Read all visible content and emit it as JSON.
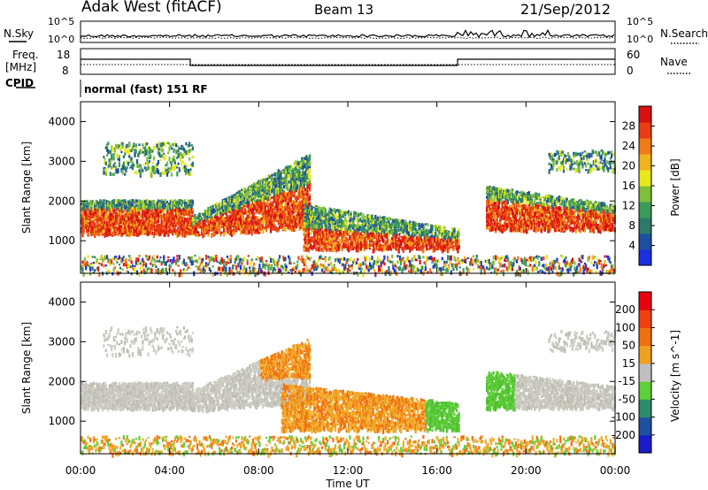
{
  "header": {
    "radar": "Adak West (fitACF)",
    "beam": "Beam 13",
    "date": "21/Sep/2012"
  },
  "panels": {
    "nsky": {
      "left_label": "N.Sky",
      "right_label": "N.Search",
      "ticks_left": [
        "10^5",
        "10^0"
      ],
      "ticks_right": [
        "10^5",
        "10^0"
      ]
    },
    "freq": {
      "left_label": "Freq.",
      "left_unit": "[MHz]",
      "right_label": "Nave",
      "ticks_left": [
        "18",
        "8"
      ],
      "ticks_right": [
        "60",
        "0"
      ]
    },
    "cpid": {
      "label": "CPID",
      "mode_text": "normal (fast) 151 RF"
    }
  },
  "chart_data": [
    {
      "type": "heatmap",
      "title": "",
      "xlabel": "Time UT",
      "ylabel": "Slant Range [km]",
      "x_ticks": [
        "00:00",
        "04:00",
        "08:00",
        "12:00",
        "16:00",
        "20:00",
        "00:00"
      ],
      "x_range_hours": [
        0,
        24
      ],
      "y_ticks": [
        1000,
        2000,
        3000,
        4000
      ],
      "ylim": [
        180,
        4500
      ],
      "colorbar": {
        "label": "Power [dB]",
        "ticks": [
          4,
          8,
          12,
          16,
          20,
          24,
          28
        ],
        "range": [
          0,
          32
        ],
        "colors": [
          "#1c2fe0",
          "#1f4fa0",
          "#2d7a6a",
          "#3a9a58",
          "#7fbf3a",
          "#e8e81c",
          "#f0b41a",
          "#f07a18",
          "#e83c14",
          "#d81010"
        ]
      }
    },
    {
      "type": "heatmap",
      "title": "",
      "xlabel": "Time UT",
      "ylabel": "Slant Range [km]",
      "x_ticks": [
        "00:00",
        "04:00",
        "08:00",
        "12:00",
        "16:00",
        "20:00",
        "00:00"
      ],
      "x_range_hours": [
        0,
        24
      ],
      "y_ticks": [
        1000,
        2000,
        3000,
        4000
      ],
      "ylim": [
        180,
        4500
      ],
      "colorbar": {
        "label": "Velocity [m s^-1]",
        "ticks": [
          200,
          100,
          50,
          15,
          -15,
          -50,
          -100,
          -200
        ],
        "colors": [
          "#1c1ccc",
          "#1f4fa0",
          "#2d8a6a",
          "#5fcf3a",
          "#bfbfbf",
          "#f0a020",
          "#f07010",
          "#f04010",
          "#e80010"
        ]
      }
    }
  ]
}
